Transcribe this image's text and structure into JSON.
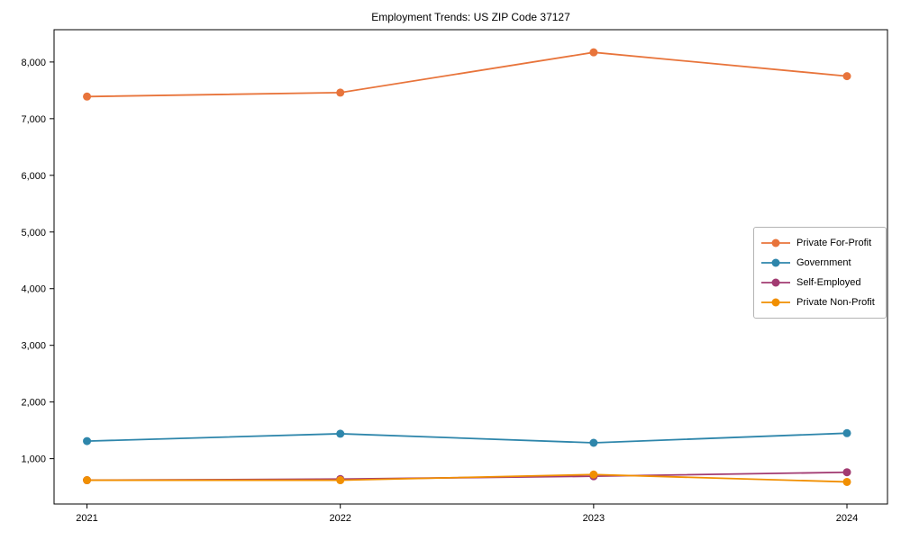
{
  "chart_data": {
    "type": "line",
    "title": "Employment Trends: US ZIP Code 37127",
    "xlabel": "",
    "ylabel": "",
    "x_categories": [
      "2021",
      "2022",
      "2023",
      "2024"
    ],
    "series": [
      {
        "name": "Private For-Profit",
        "color": "#E8743B",
        "values": [
          7390,
          7460,
          8170,
          7750
        ]
      },
      {
        "name": "Government",
        "color": "#2E86AB",
        "values": [
          1310,
          1440,
          1280,
          1450
        ]
      },
      {
        "name": "Self-Employed",
        "color": "#A23B72",
        "values": [
          620,
          640,
          690,
          760
        ]
      },
      {
        "name": "Private Non-Profit",
        "color": "#F18F01",
        "values": [
          620,
          620,
          720,
          590
        ]
      }
    ],
    "ylim": [
      200,
      8570
    ],
    "yticks": {
      "values": [
        1000,
        2000,
        3000,
        4000,
        5000,
        6000,
        7000,
        8000
      ],
      "labels": [
        "1,000",
        "2,000",
        "3,000",
        "4,000",
        "5,000",
        "6,000",
        "7,000",
        "8,000"
      ]
    },
    "legend_position": "center right",
    "grid": false,
    "marker": "circle",
    "axis_color": "#000000"
  }
}
